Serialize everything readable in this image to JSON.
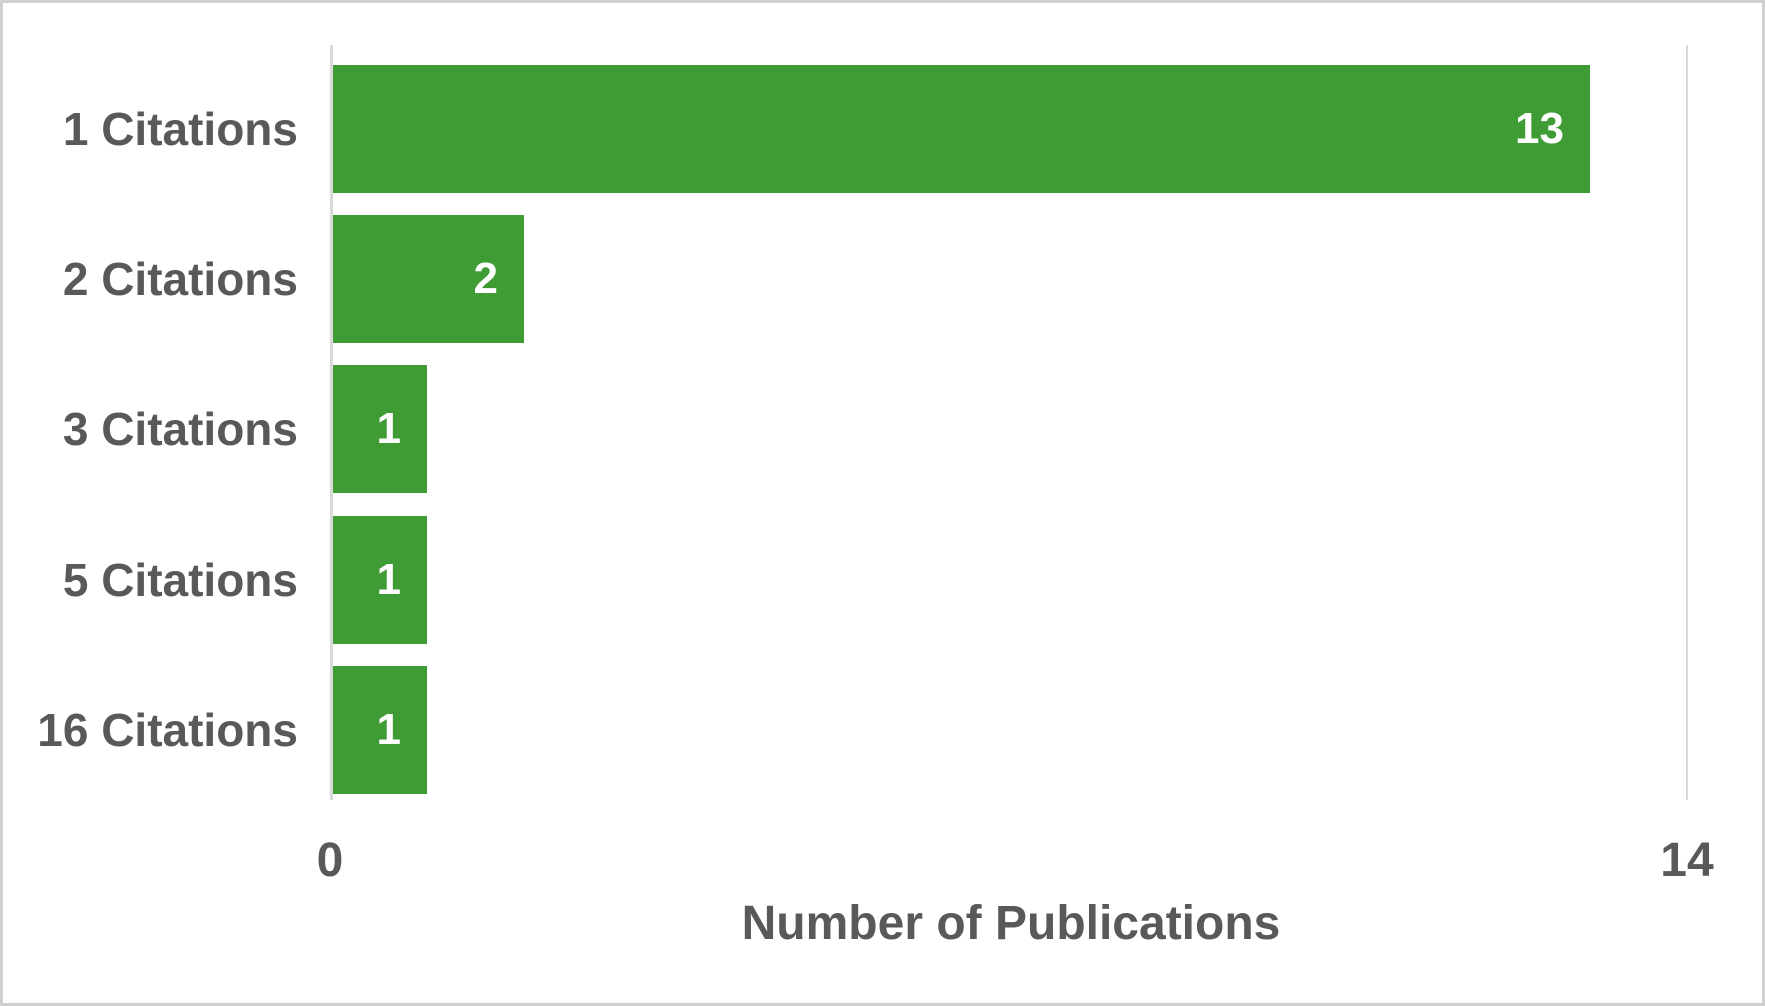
{
  "chart_data": {
    "type": "bar",
    "orientation": "horizontal",
    "categories": [
      "1 Citations",
      "2 Citations",
      "3 Citations",
      "5 Citations",
      "16 Citations"
    ],
    "values": [
      13,
      2,
      1,
      1,
      1
    ],
    "title": "",
    "xlabel": "Number of Publications",
    "ylabel": "",
    "xlim": [
      0,
      14
    ],
    "x_tick_labels": [
      "0",
      "14"
    ],
    "grid": "right-boundary-gridline-only",
    "legend": "none",
    "data_labels": "inside-end",
    "colors": {
      "bar": "#3F9C35",
      "text": "#595959",
      "value_label": "#FFFFFF",
      "axis_line": "#D9D9D9",
      "frame_border": "#CFCFCF",
      "background": "#FFFFFF"
    }
  },
  "x_axis": {
    "tick_min": "0",
    "tick_max": "14",
    "title": "Number of Publications"
  }
}
